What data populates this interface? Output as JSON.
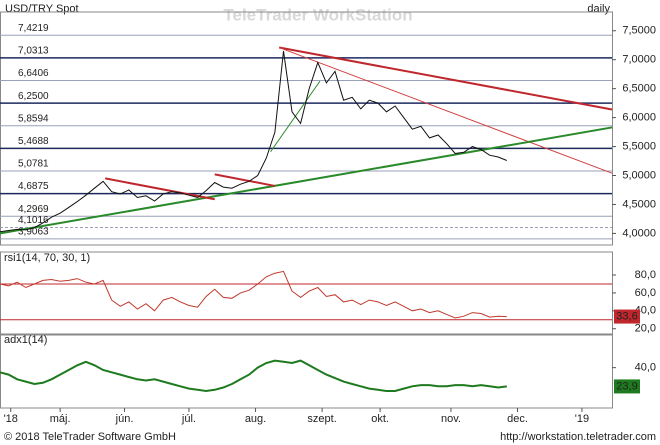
{
  "chart_data": [
    {
      "type": "line",
      "title": "USD/TRY Spot",
      "timeframe": "daily",
      "watermark": "TeleTrader WorkStation",
      "color": "#111111",
      "x": [
        0,
        4,
        8,
        12,
        16,
        20,
        24,
        28,
        32,
        36,
        40,
        44,
        48,
        52,
        56,
        60,
        64,
        68,
        72,
        76,
        80,
        84,
        88,
        92,
        96,
        100,
        104,
        108,
        112,
        116,
        120,
        124,
        128,
        132,
        136,
        140,
        144,
        148,
        152,
        156,
        160,
        164,
        168,
        172,
        176,
        180,
        184,
        188,
        192,
        196,
        200,
        204,
        208,
        212,
        216,
        220,
        224,
        228,
        232,
        236
      ],
      "values": [
        4.03,
        4.05,
        4.07,
        4.06,
        4.1,
        4.18,
        4.28,
        4.35,
        4.45,
        4.55,
        4.66,
        4.78,
        4.9,
        4.72,
        4.68,
        4.75,
        4.62,
        4.65,
        4.56,
        4.68,
        4.72,
        4.7,
        4.66,
        4.62,
        4.74,
        4.88,
        4.8,
        4.78,
        4.85,
        4.9,
        5.0,
        5.3,
        5.75,
        7.15,
        6.1,
        5.9,
        6.5,
        6.95,
        6.6,
        6.8,
        6.3,
        6.35,
        6.15,
        6.3,
        6.25,
        6.1,
        6.2,
        6.0,
        5.8,
        5.85,
        5.65,
        5.7,
        5.55,
        5.38,
        5.4,
        5.5,
        5.45,
        5.35,
        5.32,
        5.26
      ],
      "xlim": [
        0,
        285
      ],
      "ylim": [
        3.8,
        7.72
      ],
      "yticks": [
        {
          "value": 7.5,
          "label": "7,5000"
        },
        {
          "value": 7.0,
          "label": "7,0000"
        },
        {
          "value": 6.5,
          "label": "6,5000"
        },
        {
          "value": 6.0,
          "label": "6,0000"
        },
        {
          "value": 5.5,
          "label": "5,5000"
        },
        {
          "value": 5.0,
          "label": "5,0000"
        },
        {
          "value": 4.5,
          "label": "4,5000"
        },
        {
          "value": 4.0,
          "label": "4,0000"
        }
      ],
      "levels": [
        {
          "value": 7.4219,
          "label": "7,4219"
        },
        {
          "value": 7.0313,
          "label": "7,0313"
        },
        {
          "value": 6.6406,
          "label": "6,6406"
        },
        {
          "value": 6.25,
          "label": "6,2500"
        },
        {
          "value": 5.8594,
          "label": "5,8594"
        },
        {
          "value": 5.4688,
          "label": "5,4688"
        },
        {
          "value": 5.0781,
          "label": "5,0781"
        },
        {
          "value": 4.6875,
          "label": "4,6875"
        },
        {
          "value": 4.2969,
          "label": "4,2969"
        },
        {
          "value": 4.1016,
          "label": "4,1016"
        },
        {
          "value": 3.9063,
          "label": "3,9063"
        }
      ],
      "trendlines": [
        {
          "color": "#c0272d",
          "width": 2,
          "x": [
            130,
            285
          ],
          "y": [
            7.21,
            6.14
          ]
        },
        {
          "color": "#d04040",
          "width": 1,
          "x": [
            130,
            285
          ],
          "y": [
            7.21,
            5.04
          ]
        },
        {
          "color": "#2a8a2a",
          "width": 2,
          "x": [
            0,
            285
          ],
          "y": [
            4.0,
            5.83
          ]
        },
        {
          "color": "#2a8a2a",
          "width": 1,
          "x": [
            126,
            149
          ],
          "y": [
            5.41,
            6.63
          ]
        },
        {
          "color": "#c0272d",
          "width": 2,
          "x": [
            49,
            100
          ],
          "y": [
            4.95,
            4.59
          ]
        },
        {
          "color": "#c0272d",
          "width": 2,
          "x": [
            100,
            128
          ],
          "y": [
            5.02,
            4.82
          ]
        }
      ]
    },
    {
      "type": "line",
      "title": "rsi1(14, 70, 30, 1)",
      "color": "#c0392b",
      "x": [
        0,
        4,
        8,
        12,
        16,
        20,
        24,
        28,
        32,
        36,
        40,
        44,
        48,
        52,
        56,
        60,
        64,
        68,
        72,
        76,
        80,
        84,
        88,
        92,
        96,
        100,
        104,
        108,
        112,
        116,
        120,
        124,
        128,
        132,
        136,
        140,
        144,
        148,
        152,
        156,
        160,
        164,
        168,
        172,
        176,
        180,
        184,
        188,
        192,
        196,
        200,
        204,
        208,
        212,
        216,
        220,
        224,
        228,
        232,
        236
      ],
      "values": [
        70,
        68,
        72,
        66,
        70,
        74,
        75,
        73,
        74,
        76,
        72,
        70,
        74,
        52,
        45,
        50,
        42,
        48,
        40,
        52,
        55,
        50,
        46,
        44,
        56,
        64,
        55,
        54,
        60,
        63,
        70,
        78,
        82,
        84,
        62,
        55,
        62,
        66,
        56,
        58,
        50,
        52,
        47,
        52,
        50,
        46,
        50,
        45,
        40,
        42,
        38,
        40,
        36,
        32,
        34,
        38,
        37,
        33,
        34,
        33.6
      ],
      "xlim": [
        0,
        285
      ],
      "ylim": [
        13,
        99
      ],
      "yticks": [
        {
          "value": 80,
          "label": "80,0"
        },
        {
          "value": 60,
          "label": "60,0"
        },
        {
          "value": 40,
          "label": "40,0"
        },
        {
          "value": 20,
          "label": "20,0"
        }
      ],
      "hlines": [
        70,
        30
      ],
      "last": {
        "value": 33.6,
        "label": "33,6",
        "color": "#c0272d"
      }
    },
    {
      "type": "line",
      "title": "adx1(14)",
      "color": "#1e7a1e",
      "x": [
        0,
        4,
        8,
        12,
        16,
        20,
        24,
        28,
        32,
        36,
        40,
        44,
        48,
        52,
        56,
        60,
        64,
        68,
        72,
        76,
        80,
        84,
        88,
        92,
        96,
        100,
        104,
        108,
        112,
        116,
        120,
        124,
        128,
        132,
        136,
        140,
        144,
        148,
        152,
        156,
        160,
        164,
        168,
        172,
        176,
        180,
        184,
        188,
        192,
        196,
        200,
        204,
        208,
        212,
        216,
        220,
        224,
        228,
        232,
        236
      ],
      "values": [
        36,
        34,
        30,
        28,
        26,
        27,
        30,
        34,
        38,
        42,
        45,
        42,
        38,
        36,
        34,
        32,
        30,
        29,
        30,
        28,
        26,
        24,
        22,
        21,
        20,
        21,
        23,
        26,
        30,
        34,
        40,
        44,
        46,
        45,
        44,
        46,
        42,
        38,
        34,
        31,
        28,
        26,
        24,
        22,
        21,
        20,
        20,
        22,
        24,
        25,
        25,
        24,
        24,
        25,
        25,
        24,
        25,
        24,
        23,
        23.9
      ],
      "xlim": [
        0,
        285
      ],
      "ylim": [
        5.4,
        63.7
      ],
      "yticks": [
        {
          "value": 40,
          "label": "40,0"
        }
      ],
      "last": {
        "value": 23.9,
        "label": "23,9",
        "color": "#1e7a1e"
      },
      "xticks": [
        {
          "value": 5,
          "label": "'18"
        },
        {
          "value": 28,
          "label": "máj."
        },
        {
          "value": 58,
          "label": "jún."
        },
        {
          "value": 88,
          "label": "júl."
        },
        {
          "value": 119,
          "label": "aug."
        },
        {
          "value": 150,
          "label": "szept."
        },
        {
          "value": 177,
          "label": "okt."
        },
        {
          "value": 210,
          "label": "nov."
        },
        {
          "value": 241,
          "label": "dec."
        },
        {
          "value": 271,
          "label": "'19"
        }
      ]
    }
  ],
  "footer": {
    "copyright": "© 2018 TeleTrader Software GmbH",
    "url": "http://workstation.teletrader.com"
  }
}
